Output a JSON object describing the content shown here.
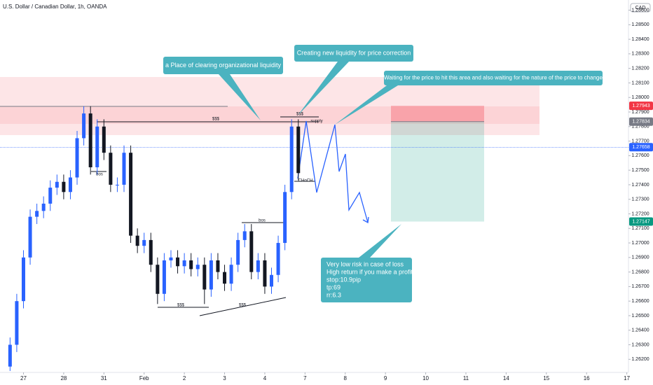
{
  "chart_data": {
    "type": "candlestick",
    "title": "U.S. Dollar / Canadian Dollar, 1h, OANDA",
    "currency": "CAD",
    "x": [
      6,
      10,
      14,
      18,
      22,
      26,
      30,
      34,
      38,
      42,
      46,
      50,
      54,
      58,
      62,
      66,
      70,
      74,
      78,
      82,
      86,
      90,
      94,
      98,
      102,
      106,
      110,
      114,
      118,
      122,
      126,
      130,
      134,
      138,
      142,
      146,
      150,
      154,
      158,
      162,
      166,
      170,
      174,
      178
    ],
    "open": [
      1.2615,
      1.263,
      1.266,
      1.269,
      1.2718,
      1.2722,
      1.2727,
      1.2738,
      1.2742,
      1.2735,
      1.2745,
      1.2772,
      1.2789,
      1.2752,
      1.278,
      1.2762,
      1.274,
      1.274,
      1.2762,
      1.2705,
      1.2698,
      1.2702,
      1.2685,
      1.2665,
      1.2688,
      1.269,
      1.2684,
      1.2688,
      1.2682,
      1.2685,
      1.2668,
      1.2688,
      1.268,
      1.2672,
      1.2685,
      1.2702,
      1.2708,
      1.268,
      1.2688,
      1.267,
      1.2678,
      1.27,
      1.2735,
      1.278
    ],
    "high": [
      1.2635,
      1.2665,
      1.2695,
      1.2723,
      1.2727,
      1.2732,
      1.2743,
      1.2747,
      1.2747,
      1.275,
      1.2777,
      1.2794,
      1.2794,
      1.2785,
      1.2785,
      1.2767,
      1.2745,
      1.2767,
      1.2767,
      1.271,
      1.2707,
      1.2707,
      1.269,
      1.2693,
      1.2695,
      1.2695,
      1.2693,
      1.2693,
      1.269,
      1.269,
      1.2693,
      1.2693,
      1.2685,
      1.269,
      1.2707,
      1.2713,
      1.2713,
      1.2693,
      1.2693,
      1.2683,
      1.2705,
      1.274,
      1.2785,
      1.2785
    ],
    "low": [
      1.2612,
      1.2625,
      1.2655,
      1.2685,
      1.2713,
      1.2717,
      1.2722,
      1.2733,
      1.273,
      1.273,
      1.274,
      1.2767,
      1.2747,
      1.2747,
      1.2757,
      1.2735,
      1.2735,
      1.2735,
      1.27,
      1.2693,
      1.2693,
      1.268,
      1.2658,
      1.266,
      1.2683,
      1.2679,
      1.2679,
      1.2677,
      1.2677,
      1.2658,
      1.2663,
      1.2675,
      1.2667,
      1.2667,
      1.268,
      1.2697,
      1.2675,
      1.2675,
      1.2665,
      1.2665,
      1.2673,
      1.2695,
      1.273,
      1.2743
    ],
    "close": [
      1.263,
      1.266,
      1.269,
      1.2718,
      1.2722,
      1.2727,
      1.2738,
      1.2742,
      1.2735,
      1.2745,
      1.2772,
      1.2789,
      1.2752,
      1.278,
      1.2762,
      1.274,
      1.274,
      1.2762,
      1.2705,
      1.2698,
      1.2702,
      1.2685,
      1.2665,
      1.2688,
      1.269,
      1.2684,
      1.2688,
      1.2682,
      1.2685,
      1.2668,
      1.2688,
      1.268,
      1.2672,
      1.2685,
      1.2702,
      1.2708,
      1.268,
      1.2688,
      1.267,
      1.2678,
      1.27,
      1.2735,
      1.278,
      1.2748
    ],
    "up_color": "#2962ff",
    "down_color": "#131722",
    "xlim": [
      0,
      375
    ],
    "xticks": [
      {
        "value": 14,
        "label": "27"
      },
      {
        "value": 38,
        "label": "28"
      },
      {
        "value": 62,
        "label": "31"
      },
      {
        "value": 86,
        "label": "Feb"
      },
      {
        "value": 110,
        "label": "2"
      },
      {
        "value": 134,
        "label": "3"
      },
      {
        "value": 158,
        "label": "4"
      },
      {
        "value": 182,
        "label": "7"
      },
      {
        "value": 206,
        "label": "8"
      },
      {
        "value": 230,
        "label": "9"
      },
      {
        "value": 254,
        "label": "10"
      },
      {
        "value": 278,
        "label": "11"
      },
      {
        "value": 302,
        "label": "14"
      },
      {
        "value": 326,
        "label": "15"
      },
      {
        "value": 350,
        "label": "16"
      },
      {
        "value": 374,
        "label": "17"
      }
    ],
    "ylim": [
      1.2611,
      1.2867
    ],
    "yticks": [
      {
        "value": 1.286,
        "label": "1.28600"
      },
      {
        "value": 1.285,
        "label": "1.28500"
      },
      {
        "value": 1.284,
        "label": "1.28400"
      },
      {
        "value": 1.283,
        "label": "1.28300"
      },
      {
        "value": 1.282,
        "label": "1.28200"
      },
      {
        "value": 1.281,
        "label": "1.28100"
      },
      {
        "value": 1.28,
        "label": "1.28000"
      },
      {
        "value": 1.279,
        "label": "1.27900"
      },
      {
        "value": 1.278,
        "label": "1.27800"
      },
      {
        "value": 1.277,
        "label": "1.27700"
      },
      {
        "value": 1.276,
        "label": "1.27600"
      },
      {
        "value": 1.275,
        "label": "1.27500"
      },
      {
        "value": 1.274,
        "label": "1.27400"
      },
      {
        "value": 1.273,
        "label": "1.27300"
      },
      {
        "value": 1.272,
        "label": "1.27200"
      },
      {
        "value": 1.271,
        "label": "1.27100"
      },
      {
        "value": 1.27,
        "label": "1.27000"
      },
      {
        "value": 1.269,
        "label": "1.26900"
      },
      {
        "value": 1.268,
        "label": "1.26800"
      },
      {
        "value": 1.267,
        "label": "1.26700"
      },
      {
        "value": 1.266,
        "label": "1.26600"
      },
      {
        "value": 1.265,
        "label": "1.26500"
      },
      {
        "value": 1.264,
        "label": "1.26400"
      },
      {
        "value": 1.263,
        "label": "1.26300"
      },
      {
        "value": 1.262,
        "label": "1.26200"
      }
    ],
    "grid": false,
    "stop_tag": {
      "price": 1.27943,
      "color": "#f23645"
    },
    "entry_tag": {
      "price": 1.27834,
      "color": "#787b86"
    },
    "last_tag": {
      "price": 1.27658,
      "color": "#2962ff"
    },
    "target_tag": {
      "price": 1.27147,
      "color": "#089981"
    },
    "annotations": [
      "a Place of clearing organizational liquidity",
      "Creating new liquidity for price correction",
      "Waiting for the price to hit this area and also waiting for the nature of the price to change",
      [
        "Very low risk in case of loss",
        "High return if you make a profit",
        "stop:10.9pip",
        "tp:69",
        "rr:6.3"
      ]
    ],
    "labels": [
      "$$$",
      "$$$",
      "supply",
      "bos",
      "bos",
      "CHoCH",
      "$$$",
      "$$$"
    ]
  }
}
